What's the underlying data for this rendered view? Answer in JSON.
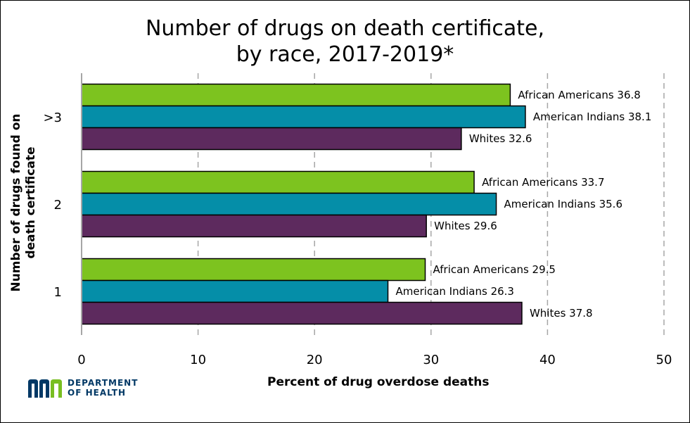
{
  "chart_data": {
    "type": "bar",
    "orientation": "horizontal",
    "title_lines": [
      "Number of drugs on death certificate,",
      "by race, 2017-2019*"
    ],
    "xlabel": "Percent of drug overdose deaths",
    "ylabel_lines": [
      "Number of drugs found on",
      "death certificate"
    ],
    "categories": [
      ">3",
      "2",
      "1"
    ],
    "xlim": [
      0,
      50
    ],
    "xticks": [
      0,
      10,
      20,
      30,
      40,
      50
    ],
    "grid": "vertical dashed",
    "legend": "none",
    "series": [
      {
        "name": "African Americans",
        "color": "#7dc31f",
        "values": [
          36.8,
          33.7,
          29.5
        ]
      },
      {
        "name": "American Indians",
        "color": "#058ea8",
        "values": [
          38.1,
          35.6,
          26.3
        ]
      },
      {
        "name": "Whites",
        "color": "#5d2a5e",
        "values": [
          32.6,
          29.6,
          37.8
        ]
      }
    ]
  },
  "logo": {
    "line1": "DEPARTMENT",
    "line2": "OF HEALTH",
    "colors": {
      "navy": "#003865",
      "green": "#78be21"
    }
  }
}
